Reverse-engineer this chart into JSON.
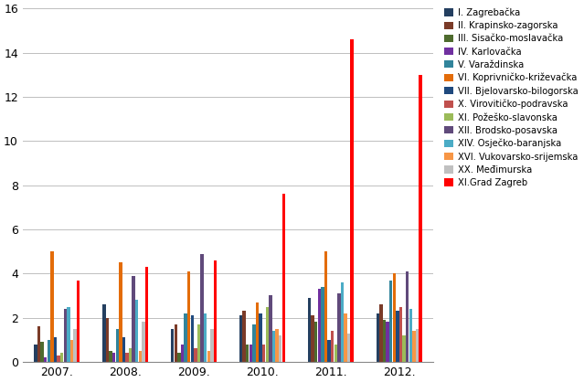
{
  "years": [
    "2007.",
    "2008.",
    "2009.",
    "2010.",
    "2011.",
    "2012."
  ],
  "series": [
    {
      "label": "I. Zagrebačka",
      "color": "#243F60",
      "values": [
        0.8,
        2.6,
        1.5,
        2.1,
        2.9,
        2.2
      ]
    },
    {
      "label": "II. Krapinsko-zagorska",
      "color": "#7B3B28",
      "values": [
        1.6,
        2.0,
        1.7,
        2.3,
        2.1,
        2.6
      ]
    },
    {
      "label": "III. Sisačko-moslavačka",
      "color": "#4E6B2E",
      "values": [
        0.9,
        0.5,
        0.4,
        0.8,
        1.8,
        1.9
      ]
    },
    {
      "label": "IV. Karlovačka",
      "color": "#7030A0",
      "values": [
        0.2,
        0.4,
        0.8,
        0.8,
        3.3,
        1.8
      ]
    },
    {
      "label": "V. Varaždinska",
      "color": "#31849B",
      "values": [
        1.0,
        1.5,
        2.2,
        1.7,
        3.4,
        3.7
      ]
    },
    {
      "label": "VI. Koprivničko-križevačka",
      "color": "#E36C09",
      "values": [
        5.0,
        4.5,
        4.1,
        2.7,
        5.0,
        4.0
      ]
    },
    {
      "label": "VII. Bjelovarsko-bilogorska",
      "color": "#1F497D",
      "values": [
        1.1,
        1.1,
        2.1,
        2.2,
        1.0,
        2.3
      ]
    },
    {
      "label": "X. Virovitičko-podravska",
      "color": "#C0504D",
      "values": [
        0.3,
        0.4,
        0.6,
        0.8,
        1.4,
        2.5
      ]
    },
    {
      "label": "XI. Požeško-slavonska",
      "color": "#9BBB59",
      "values": [
        0.4,
        0.6,
        1.7,
        2.5,
        0.8,
        1.2
      ]
    },
    {
      "label": "XII. Brodsko-posavska",
      "color": "#604A7B",
      "values": [
        2.4,
        3.9,
        4.9,
        3.0,
        3.1,
        4.1
      ]
    },
    {
      "label": "XIV. Osječko-baranjska",
      "color": "#4BACC6",
      "values": [
        2.5,
        2.8,
        2.2,
        1.4,
        3.6,
        2.4
      ]
    },
    {
      "label": "XVI. Vukovarsko-srijemska",
      "color": "#F79646",
      "values": [
        1.0,
        0.5,
        0.5,
        1.5,
        2.2,
        1.4
      ]
    },
    {
      "label": "XX. Međimurska",
      "color": "#C0C0C0",
      "values": [
        1.5,
        1.8,
        1.5,
        1.2,
        1.3,
        1.5
      ]
    },
    {
      "label": "XI.Grad Zagreb",
      "color": "#FF0000",
      "values": [
        3.7,
        4.3,
        4.6,
        7.6,
        14.6,
        13.0
      ]
    }
  ],
  "ylim": [
    0,
    16
  ],
  "yticks": [
    0,
    2,
    4,
    6,
    8,
    10,
    12,
    14,
    16
  ],
  "figsize": [
    6.39,
    4.18
  ],
  "dpi": 100,
  "bg_color": "#FFFFFF",
  "grid_color": "#BEBEBE"
}
